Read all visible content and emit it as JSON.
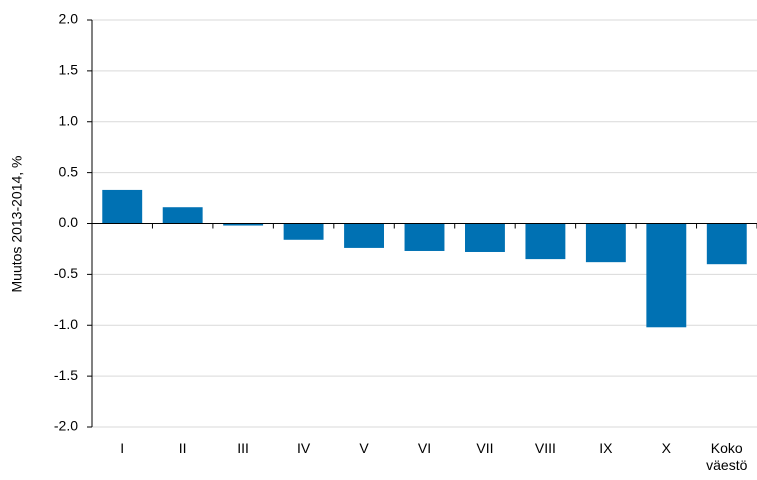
{
  "chart_data": {
    "type": "bar",
    "ylabel": "Muutos 2013-2014, %",
    "categories": [
      "I",
      "II",
      "III",
      "IV",
      "V",
      "VI",
      "VII",
      "VIII",
      "IX",
      "X",
      "Koko väestö"
    ],
    "values": [
      0.33,
      0.16,
      -0.02,
      -0.16,
      -0.24,
      -0.27,
      -0.28,
      -0.35,
      -0.38,
      -1.02,
      -0.4
    ],
    "color": "#0071b3",
    "ylim": [
      -2.0,
      2.0
    ],
    "yticks": [
      {
        "value": -2.0,
        "label": "-2.0"
      },
      {
        "value": -1.5,
        "label": "-1.5"
      },
      {
        "value": -1.0,
        "label": "-1.0"
      },
      {
        "value": -0.5,
        "label": "-0.5"
      },
      {
        "value": 0,
        "label": "0.0"
      },
      {
        "value": 0.5,
        "label": "0.5"
      },
      {
        "value": 1.0,
        "label": "1.0"
      },
      {
        "value": 1.5,
        "label": "1.5"
      },
      {
        "value": 2.0,
        "label": "2.0"
      }
    ],
    "grid": true
  }
}
